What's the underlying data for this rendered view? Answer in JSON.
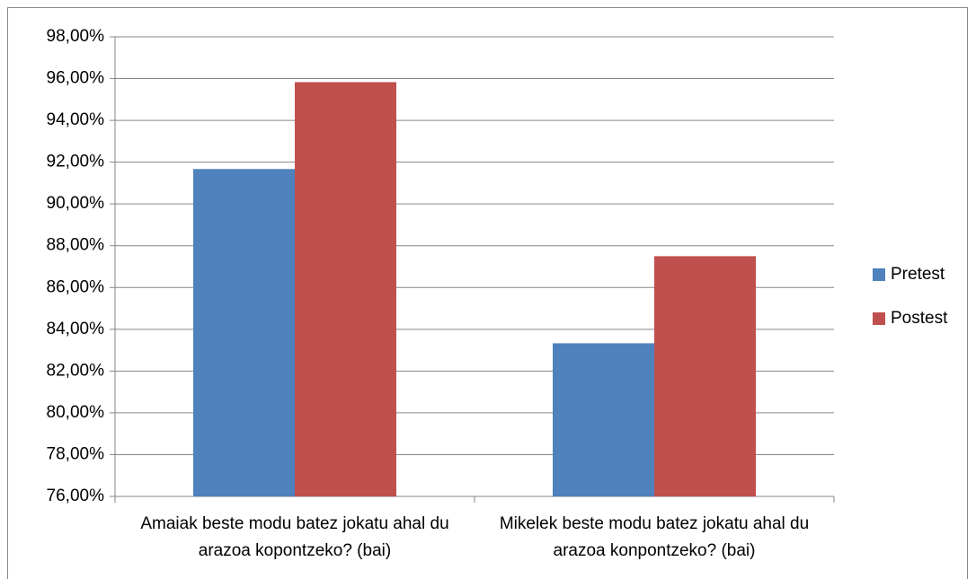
{
  "chart_data": {
    "type": "bar",
    "categories": [
      "Amaiak beste modu batez jokatu ahal du arazoa kopontzeko? (bai)",
      "Mikelek beste modu batez jokatu ahal du arazoa konpontzeko? (bai)"
    ],
    "series": [
      {
        "name": "Pretest",
        "color": "#4f81bd",
        "values": [
          91.67,
          83.33
        ]
      },
      {
        "name": "Postest",
        "color": "#c0504d",
        "values": [
          95.83,
          87.5
        ]
      }
    ],
    "ylim": [
      76,
      98
    ],
    "yticks": [
      {
        "value": 76,
        "label": "76,00%"
      },
      {
        "value": 78,
        "label": "78,00%"
      },
      {
        "value": 80,
        "label": "80,00%"
      },
      {
        "value": 82,
        "label": "82,00%"
      },
      {
        "value": 84,
        "label": "84,00%"
      },
      {
        "value": 86,
        "label": "86,00%"
      },
      {
        "value": 88,
        "label": "88,00%"
      },
      {
        "value": 90,
        "label": "90,00%"
      },
      {
        "value": 92,
        "label": "92,00%"
      },
      {
        "value": 94,
        "label": "94,00%"
      },
      {
        "value": 96,
        "label": "96,00%"
      },
      {
        "value": 98,
        "label": "98,00%"
      }
    ],
    "grid": true,
    "legend": "right"
  }
}
